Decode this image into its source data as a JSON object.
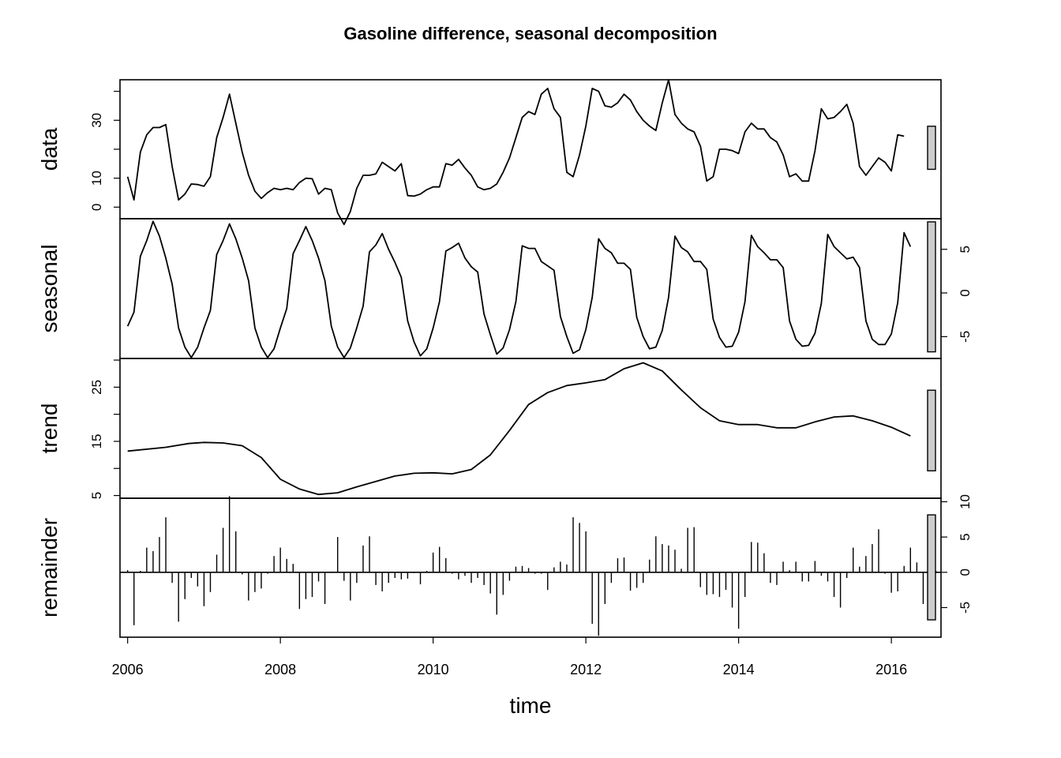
{
  "chart_data": {
    "type": "line",
    "title": "Gasoline difference, seasonal decomposition",
    "xlabel": "time",
    "xlim": [
      2005.9,
      2016.65
    ],
    "x_ticks": [
      "2006",
      "2008",
      "2010",
      "2012",
      "2014",
      "2016"
    ],
    "x_start": 2006.0,
    "x_step": 0.0833333,
    "panels": [
      {
        "name": "data",
        "ylim": [
          -4,
          44
        ],
        "y_ticks": [
          "0",
          "10",
          "30"
        ],
        "axis_side": "left",
        "kind": "line",
        "values": [
          10.5,
          2.5,
          19,
          25,
          27.5,
          27.5,
          28.5,
          14,
          2.5,
          4.5,
          8,
          7.8,
          7.2,
          10.5,
          24,
          31,
          39,
          29,
          19,
          11,
          5.5,
          3,
          5,
          6.5,
          6,
          6.5,
          6,
          8.5,
          10,
          9.8,
          4.5,
          6.5,
          6,
          -2,
          -6,
          -1.5,
          6.5,
          11,
          11,
          11.5,
          15.5,
          14,
          12.5,
          15,
          4,
          3.8,
          4.5,
          6,
          7,
          7,
          15,
          14.5,
          16.5,
          13.5,
          11,
          7,
          6,
          6.5,
          8,
          12,
          17,
          24,
          31,
          33,
          32,
          39,
          41,
          34,
          31,
          12,
          10.5,
          18,
          28,
          41,
          40,
          35,
          34.5,
          36,
          39,
          37,
          33,
          30,
          28,
          26.5,
          36,
          44,
          32,
          29,
          27,
          26,
          21,
          9,
          10.5,
          20,
          20,
          19.5,
          18.5,
          26,
          29,
          27,
          27,
          24,
          22.5,
          18,
          10.5,
          11.5,
          9,
          9,
          19.5,
          34,
          30.5,
          31,
          33,
          35.5,
          29,
          14,
          11,
          14,
          17,
          15.5,
          12.5,
          25,
          24.5
        ],
        "unit": "value"
      },
      {
        "name": "seasonal",
        "ylim": [
          -7.5,
          8.5
        ],
        "y_ticks": [
          "-5",
          "0",
          "5"
        ],
        "axis_side": "right",
        "kind": "line",
        "values": [
          -3.8,
          -2.2,
          4.2,
          6,
          8.2,
          6.5,
          4,
          1,
          -4,
          -6.2,
          -7.4,
          -6.2,
          -4,
          -2,
          4.4,
          6,
          7.9,
          6.2,
          4,
          1.4,
          -4,
          -6.2,
          -7.4,
          -6.4,
          -4,
          -1.8,
          4.5,
          6,
          7.6,
          6,
          4,
          1.4,
          -3.8,
          -6.2,
          -7.4,
          -6.3,
          -4,
          -1.5,
          4.7,
          5.5,
          6.8,
          5,
          3.5,
          1.8,
          -3.2,
          -5.6,
          -7.2,
          -6.4,
          -4,
          -1,
          4.8,
          5.2,
          5.7,
          4,
          3,
          2.4,
          -2.4,
          -4.8,
          -7,
          -6.3,
          -4.2,
          -1,
          5.4,
          5.1,
          5.1,
          3.6,
          3.1,
          2.6,
          -2.7,
          -5,
          -6.9,
          -6.5,
          -4.2,
          -0.5,
          6.2,
          5.1,
          4.6,
          3.4,
          3.4,
          2.7,
          -2.8,
          -5,
          -6.4,
          -6.2,
          -4.3,
          -0.5,
          6.5,
          5.2,
          4.7,
          3.6,
          3.6,
          2.7,
          -3,
          -5.1,
          -6.2,
          -6.1,
          -4.5,
          -1,
          6.6,
          5.3,
          4.6,
          3.8,
          3.8,
          2.9,
          -3.2,
          -5.3,
          -6.1,
          -6,
          -4.6,
          -1.2,
          6.7,
          5.3,
          4.6,
          3.9,
          4.1,
          2.9,
          -3.2,
          -5.3,
          -5.9,
          -5.9,
          -4.7,
          -1.1,
          6.9,
          5.3
        ],
        "unit": "value"
      },
      {
        "name": "trend",
        "ylim": [
          4.5,
          30.3
        ],
        "y_ticks": [
          "5",
          "15",
          "25"
        ],
        "axis_side": "left",
        "kind": "line",
        "points": [
          [
            2006.0,
            13.2
          ],
          [
            2006.5,
            13.9
          ],
          [
            2006.8,
            14.6
          ],
          [
            2007.0,
            14.8
          ],
          [
            2007.25,
            14.7
          ],
          [
            2007.5,
            14.2
          ],
          [
            2007.75,
            12
          ],
          [
            2008.0,
            8
          ],
          [
            2008.25,
            6.2
          ],
          [
            2008.5,
            5.2
          ],
          [
            2008.75,
            5.5
          ],
          [
            2009.0,
            6.6
          ],
          [
            2009.25,
            7.6
          ],
          [
            2009.5,
            8.6
          ],
          [
            2009.75,
            9.1
          ],
          [
            2010.0,
            9.2
          ],
          [
            2010.25,
            9
          ],
          [
            2010.5,
            9.8
          ],
          [
            2010.75,
            12.5
          ],
          [
            2011.0,
            17
          ],
          [
            2011.25,
            21.8
          ],
          [
            2011.5,
            24
          ],
          [
            2011.75,
            25.3
          ],
          [
            2012.0,
            25.8
          ],
          [
            2012.25,
            26.4
          ],
          [
            2012.5,
            28.4
          ],
          [
            2012.75,
            29.5
          ],
          [
            2013.0,
            28
          ],
          [
            2013.25,
            24.5
          ],
          [
            2013.5,
            21.2
          ],
          [
            2013.75,
            18.8
          ],
          [
            2014.0,
            18.1
          ],
          [
            2014.25,
            18.1
          ],
          [
            2014.5,
            17.5
          ],
          [
            2014.75,
            17.5
          ],
          [
            2015.0,
            18.6
          ],
          [
            2015.25,
            19.5
          ],
          [
            2015.5,
            19.7
          ],
          [
            2015.75,
            18.8
          ],
          [
            2016.0,
            17.6
          ],
          [
            2016.25,
            16
          ]
        ],
        "unit": "value"
      },
      {
        "name": "remainder",
        "ylim": [
          -9.2,
          10.5
        ],
        "y_ticks": [
          "-5",
          "0",
          "5",
          "10"
        ],
        "axis_side": "right",
        "kind": "bars",
        "values": [
          0.3,
          -7.5,
          0.2,
          3.5,
          3,
          5,
          7.8,
          -1.5,
          -7,
          -3.8,
          -0.8,
          -2,
          -4.8,
          -2.8,
          2.5,
          6.3,
          10.8,
          5.8,
          -0.3,
          -4,
          -2.8,
          -2.3,
          -0.2,
          2.3,
          3.5,
          1.9,
          1.2,
          -5.2,
          -3.8,
          -3.5,
          -1.3,
          -4.5,
          0.1,
          5,
          -1.2,
          -4,
          -1.5,
          3.8,
          5.1,
          -1.8,
          -2.7,
          -1.5,
          -0.8,
          -1,
          -0.9,
          -0.1,
          -1.7,
          0.2,
          2.8,
          3.6,
          2,
          -0.2,
          -1,
          -0.5,
          -1.5,
          -0.8,
          -1.8,
          -3,
          -6,
          -3.2,
          -1.2,
          0.8,
          0.9,
          0.6,
          -0.2,
          -0.2,
          -2.5,
          0.7,
          1.5,
          1.1,
          7.8,
          7,
          5.8,
          -7.3,
          -9,
          -4.5,
          -1.5,
          2,
          2.1,
          -2.6,
          -2.2,
          -1.5,
          1.8,
          5.1,
          4,
          3.8,
          3.2,
          0.5,
          6.3,
          6.4,
          -2.1,
          -3.2,
          -3.1,
          -3.5,
          -2.5,
          -5,
          -8,
          -3.5,
          4.3,
          4.2,
          2.7,
          -1.5,
          -1.8,
          1.5,
          0.3,
          1.5,
          -1.3,
          -1.3,
          1.6,
          -0.5,
          -1.3,
          -3.5,
          -5,
          -0.8,
          3.5,
          0.8,
          2.3,
          4,
          6.1,
          -0.2,
          -2.9,
          -2.7,
          0.9,
          3.5,
          1.4,
          -4.5,
          -1.8,
          0.2
        ],
        "unit": "value"
      }
    ]
  }
}
